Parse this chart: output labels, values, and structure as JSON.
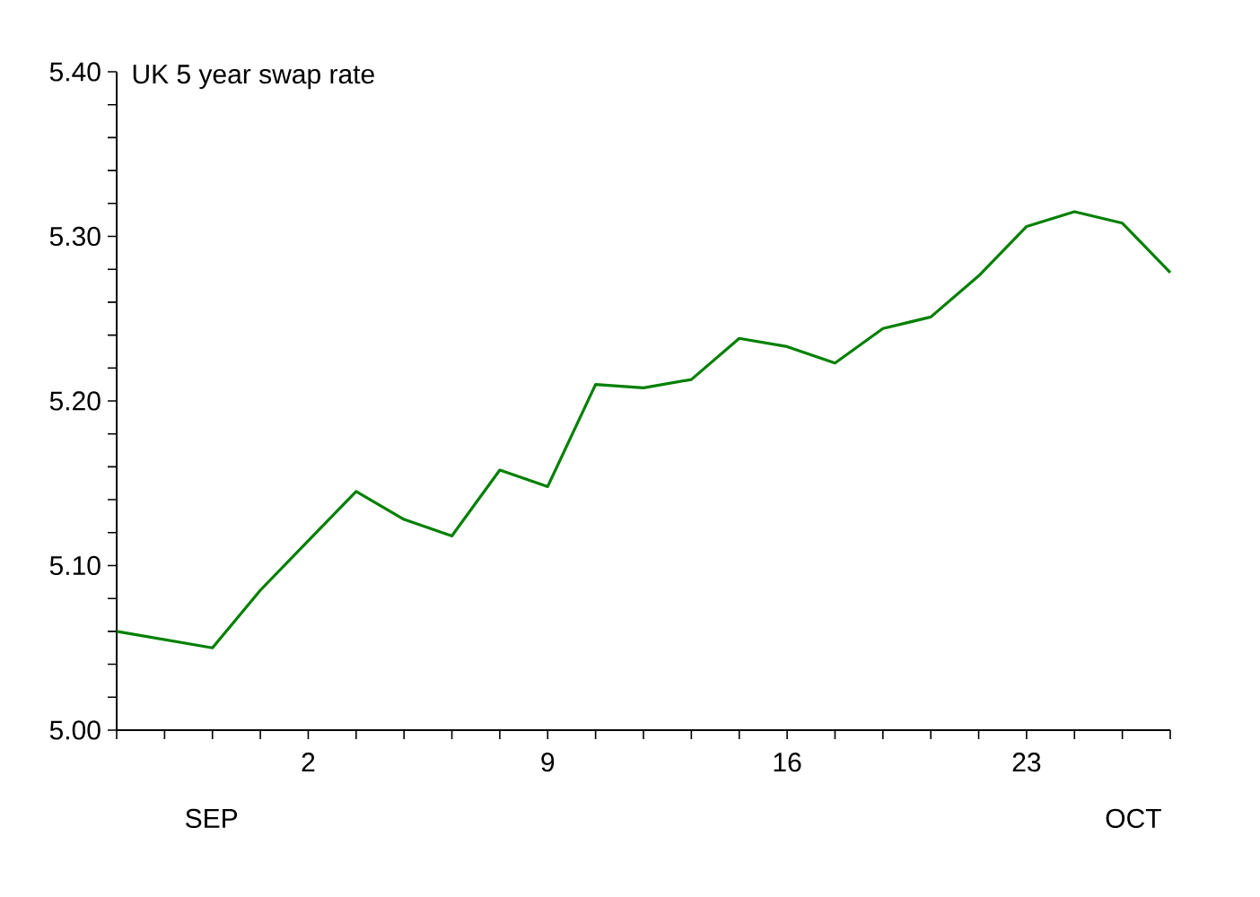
{
  "chart_data": {
    "type": "line",
    "title": "UK 5 year swap rate",
    "categories": [
      null,
      null,
      null,
      null,
      "2",
      null,
      null,
      null,
      null,
      "9",
      null,
      null,
      null,
      null,
      "16",
      null,
      null,
      null,
      null,
      "23",
      null,
      null,
      null
    ],
    "series": [
      {
        "color": "#008000",
        "values": [
          5.06,
          5.055,
          5.05,
          5.085,
          5.115,
          5.145,
          5.128,
          5.118,
          5.158,
          5.148,
          5.21,
          5.208,
          5.213,
          5.238,
          5.233,
          5.223,
          5.244,
          5.251,
          5.276,
          5.306,
          5.315,
          5.308,
          5.278
        ]
      }
    ],
    "ylim": [
      5.0,
      5.4
    ],
    "yticks": [
      {
        "value": 5.0,
        "label": "5.00"
      },
      {
        "value": 5.02,
        "label": null
      },
      {
        "value": 5.04,
        "label": null
      },
      {
        "value": 5.06,
        "label": null
      },
      {
        "value": 5.08,
        "label": null
      },
      {
        "value": 5.1,
        "label": "5.10"
      },
      {
        "value": 5.12,
        "label": null
      },
      {
        "value": 5.14,
        "label": null
      },
      {
        "value": 5.16,
        "label": null
      },
      {
        "value": 5.18,
        "label": null
      },
      {
        "value": 5.2,
        "label": "5.20"
      },
      {
        "value": 5.22,
        "label": null
      },
      {
        "value": 5.24,
        "label": null
      },
      {
        "value": 5.26,
        "label": null
      },
      {
        "value": 5.28,
        "label": null
      },
      {
        "value": 5.3,
        "label": "5.30"
      },
      {
        "value": 5.32,
        "label": null
      },
      {
        "value": 5.34,
        "label": null
      },
      {
        "value": 5.36,
        "label": null
      },
      {
        "value": 5.38,
        "label": null
      },
      {
        "value": 5.4,
        "label": "5.40"
      }
    ],
    "annotations": [
      "SEP",
      "OCT"
    ],
    "grid": false,
    "legend": false,
    "marker": "none",
    "line_style": "solid"
  }
}
